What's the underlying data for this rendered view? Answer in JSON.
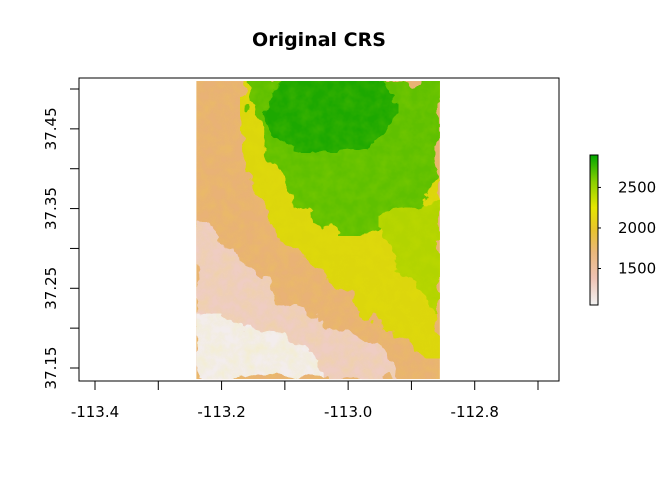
{
  "title": "Original CRS",
  "x_axis": {
    "ticks": [
      -113.4,
      -113.3,
      -113.2,
      -113.1,
      -113.0,
      -112.9,
      -112.8,
      -112.7
    ],
    "labels": [
      "-113.4",
      "",
      "-113.2",
      "",
      "-113.0",
      "",
      "-112.8",
      ""
    ]
  },
  "y_axis": {
    "ticks": [
      37.15,
      37.2,
      37.25,
      37.3,
      37.35,
      37.4,
      37.45,
      37.5
    ],
    "labels": [
      "37.15",
      "",
      "37.25",
      "",
      "37.35",
      "",
      "37.45",
      ""
    ]
  },
  "raster": {
    "extent_x": [
      -113.24,
      -112.855
    ],
    "extent_y": [
      37.136,
      37.51
    ],
    "description_colors": [
      "#f2f2f2",
      "#efc2b3",
      "#eab87c",
      "#e8c32e",
      "#e6e600",
      "#8bd000",
      "#00a600"
    ]
  },
  "legend": {
    "range": [
      1050,
      2900
    ],
    "ticks": [
      1500,
      2000,
      2500
    ],
    "labels": [
      "1500",
      "2000",
      "2500"
    ]
  },
  "colors": {
    "low": "#f2f2f2",
    "mid": "#e8c32e",
    "high": "#00a600"
  }
}
